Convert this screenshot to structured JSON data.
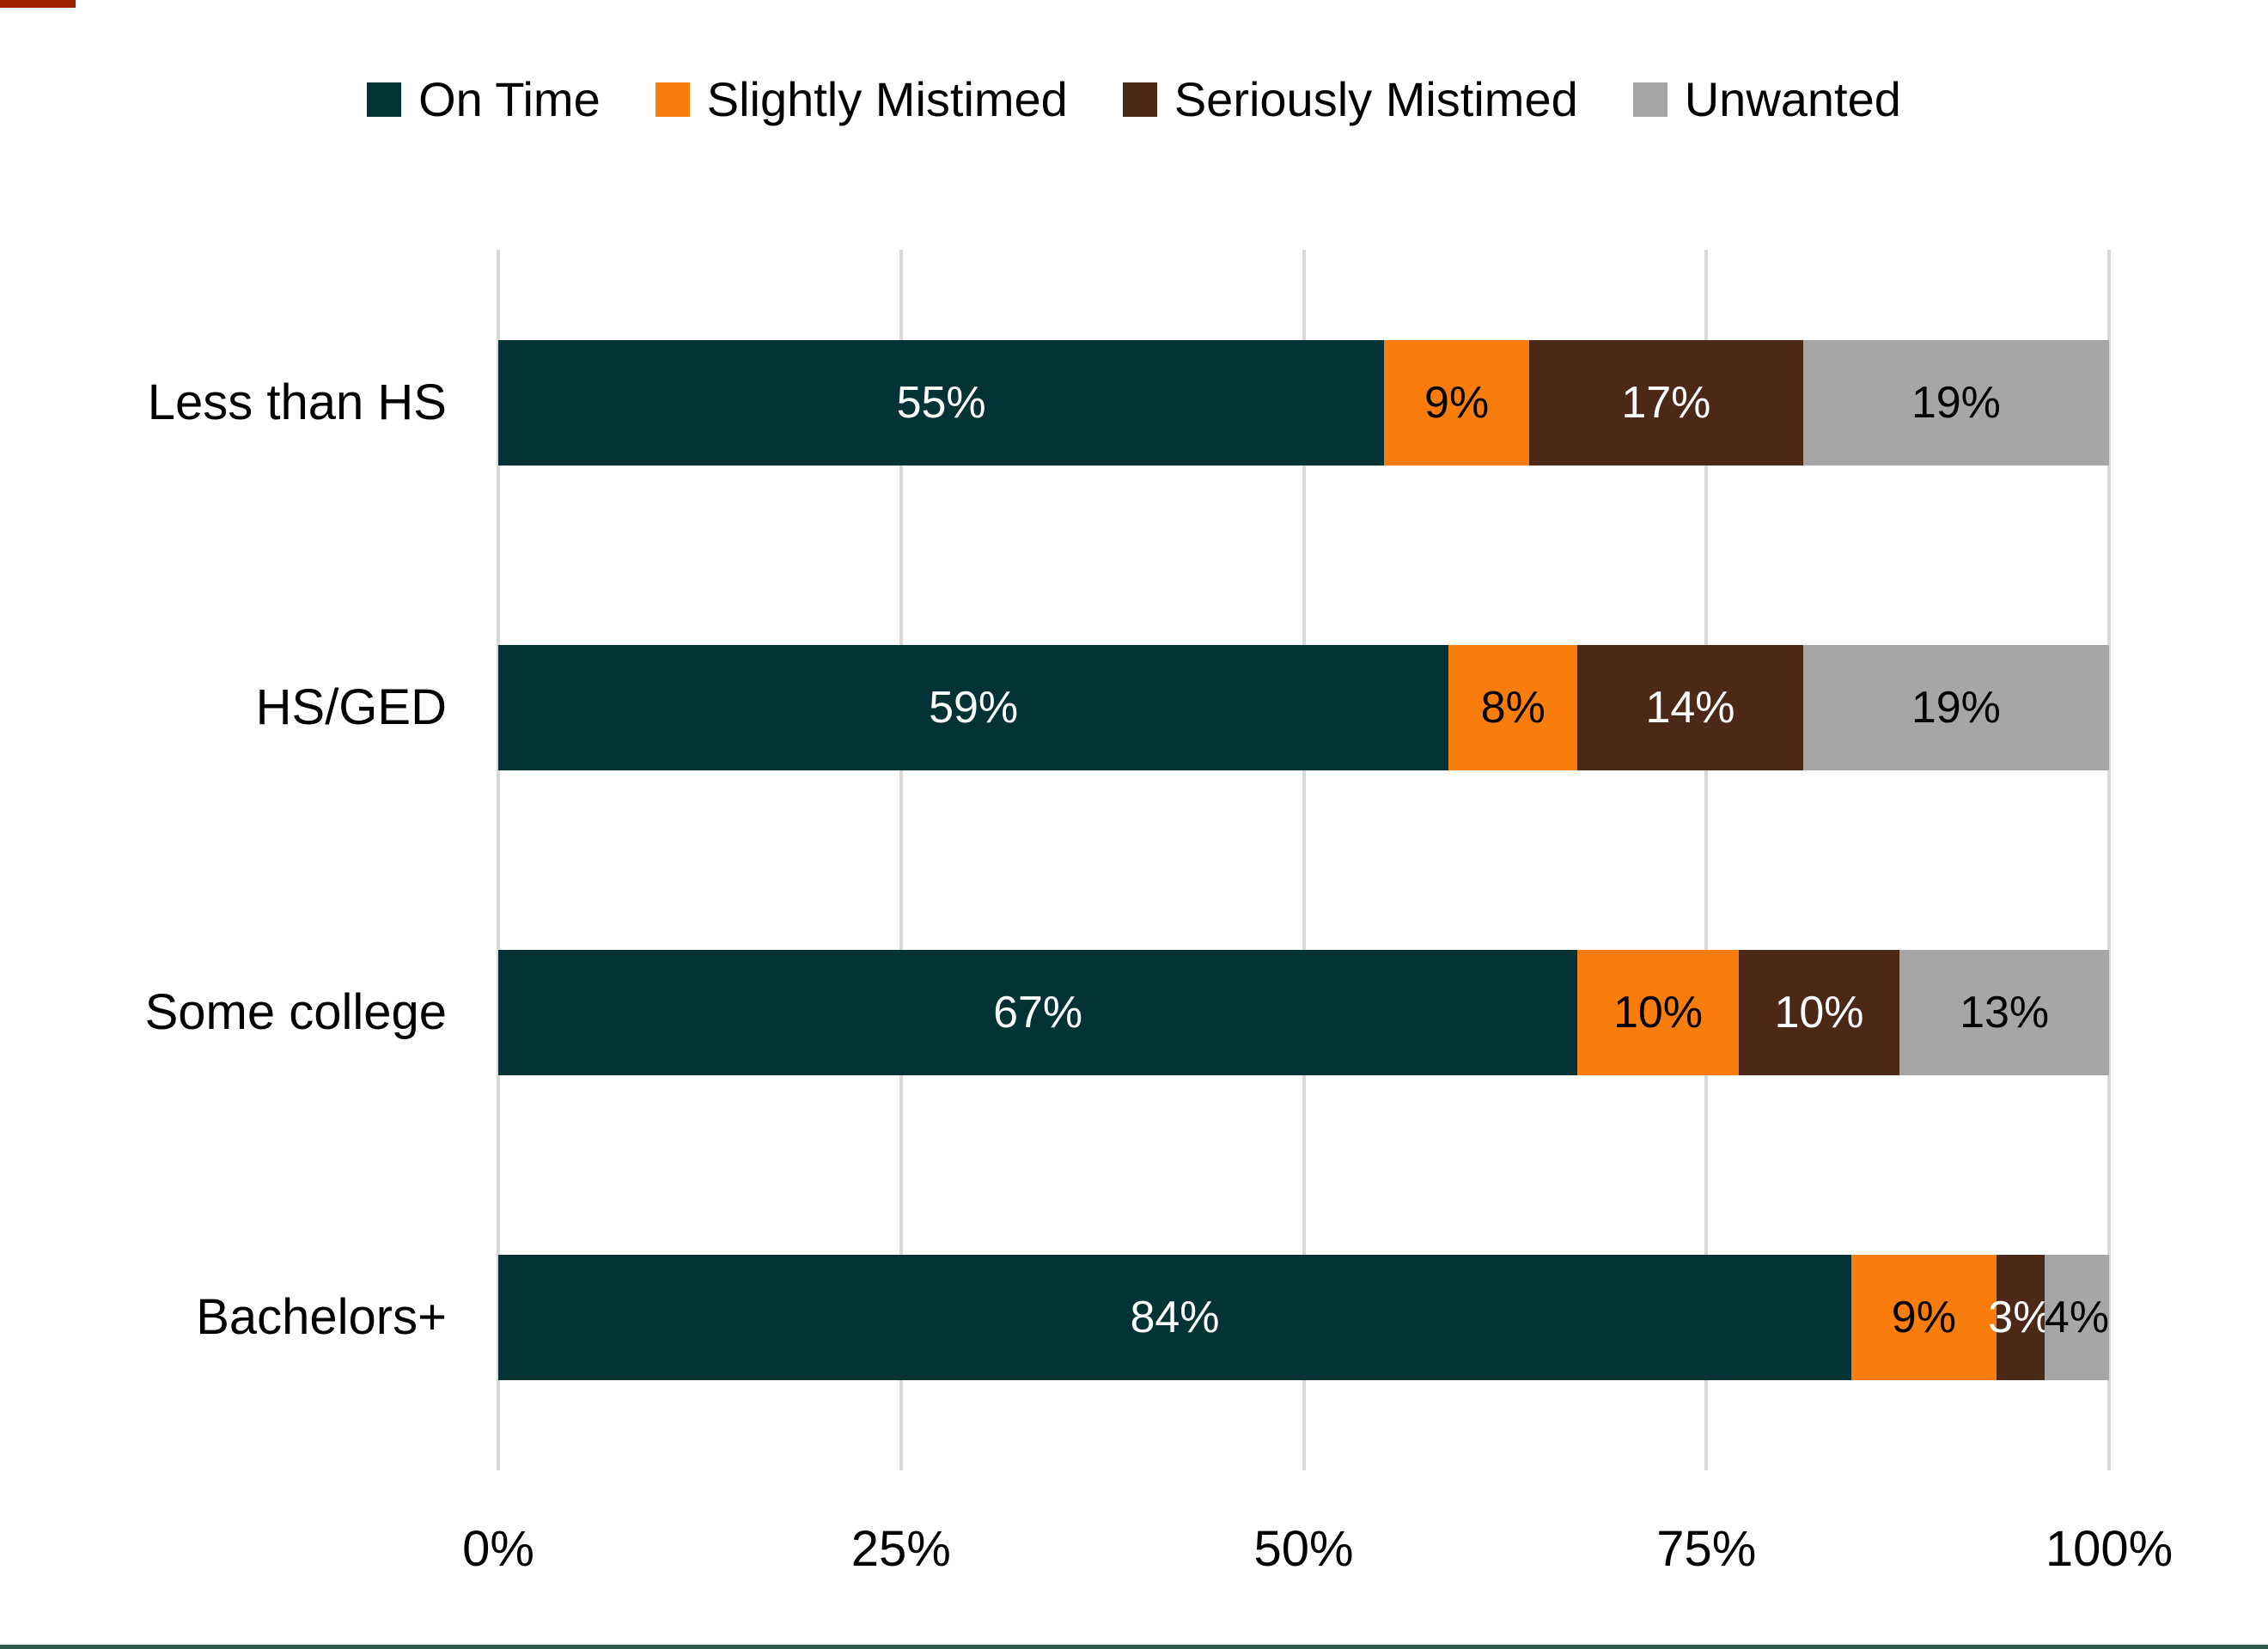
{
  "chart_data": {
    "type": "bar",
    "orientation": "horizontal-stacked",
    "title": "",
    "xlabel": "",
    "ylabel": "",
    "categories": [
      "Less than HS",
      "HS/GED",
      "Some college",
      "Bachelors+"
    ],
    "series": [
      {
        "name": "On Time",
        "color": "#043335",
        "label_color": "#FFFFFF",
        "values": [
          55,
          59,
          67,
          84
        ]
      },
      {
        "name": "Slightly Mistimed",
        "color": "#F87D0C",
        "label_color": "#000000",
        "values": [
          9,
          8,
          10,
          9
        ]
      },
      {
        "name": "Seriously Mistimed",
        "color": "#4C2817",
        "label_color": "#FFFFFF",
        "values": [
          17,
          14,
          10,
          3
        ]
      },
      {
        "name": "Unwanted",
        "color": "#A6A6A6",
        "label_color": "#000000",
        "values": [
          19,
          19,
          13,
          4
        ]
      }
    ],
    "x_ticks": [
      "0%",
      "25%",
      "50%",
      "75%",
      "100%"
    ],
    "xlim": [
      0,
      100
    ],
    "value_suffix": "%",
    "legend_position": "top",
    "grid": "vertical-only"
  },
  "colors": {
    "background": "#FFFFFF",
    "gridline": "#D9D9D9",
    "bottom_border": "#2F5D49",
    "corner_strip": "#9C2200",
    "axis_text": "#000000"
  }
}
